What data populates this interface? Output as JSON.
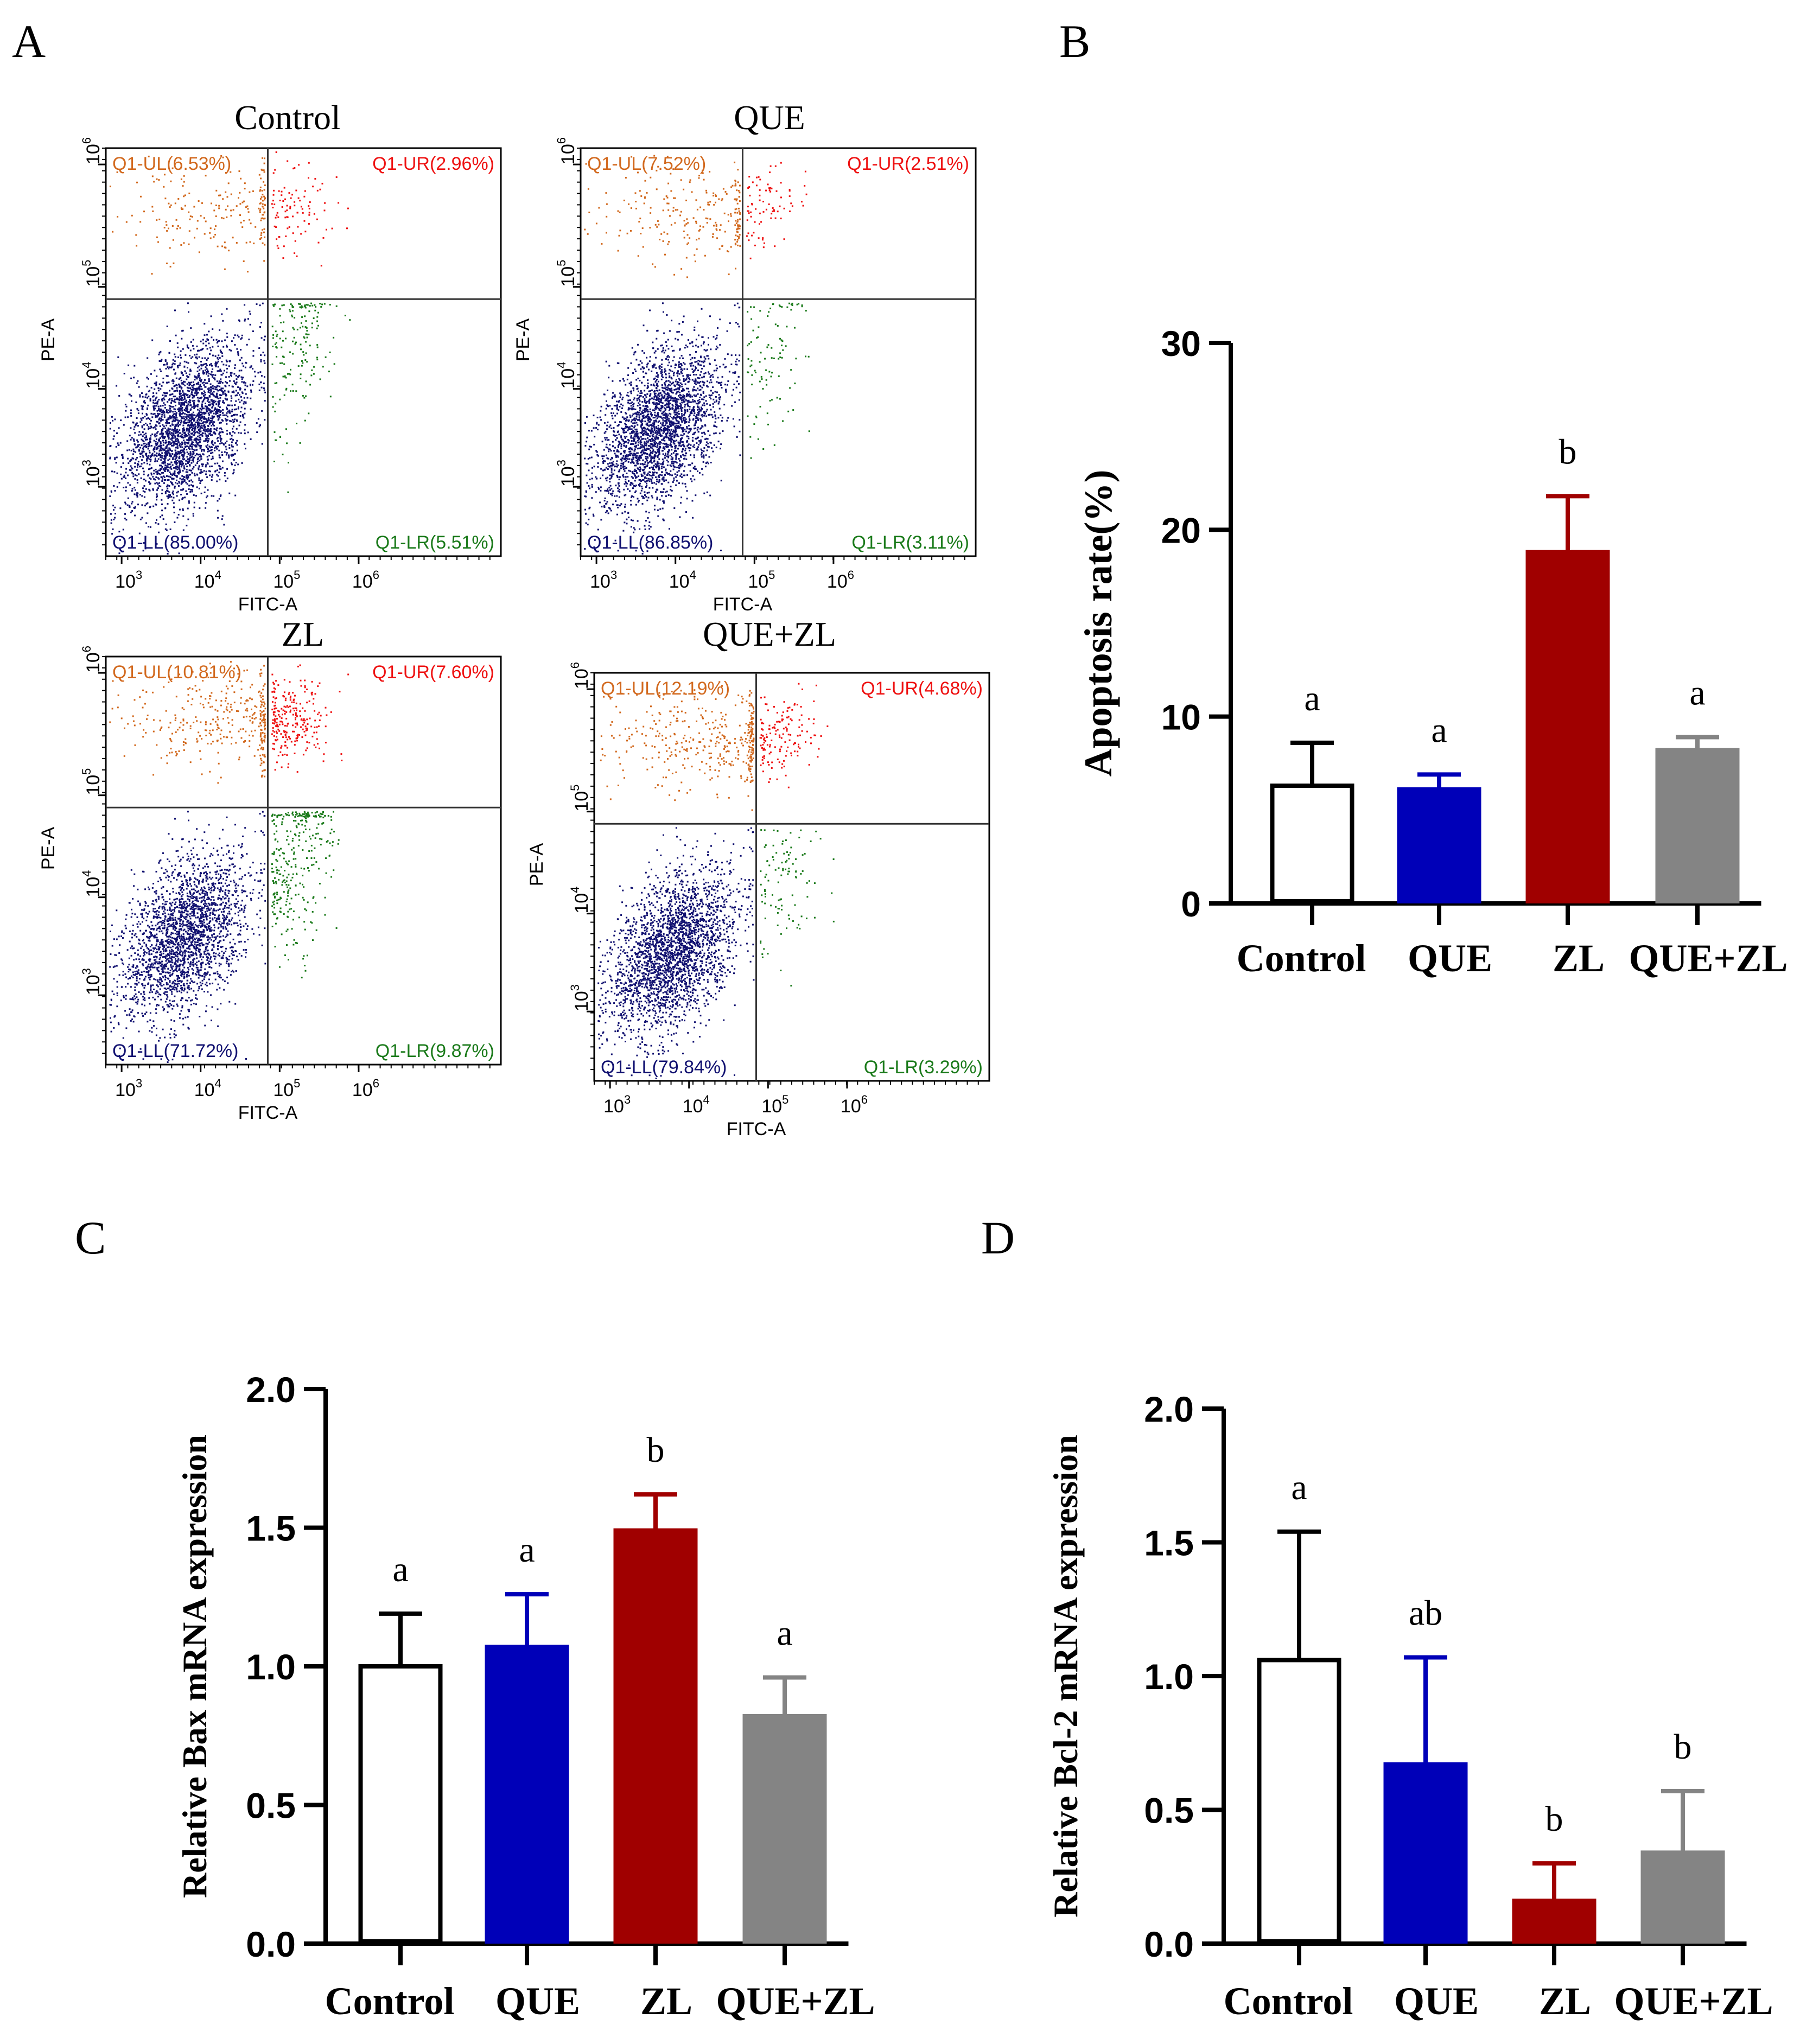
{
  "figure": {
    "panel_labels": [
      "A",
      "B",
      "C",
      "D"
    ]
  },
  "colors": {
    "control": "#ffffff",
    "que": "#0000b8",
    "zl": "#a00000",
    "que_zl": "#848484",
    "ul": "#d2691e",
    "ur": "#ee1111",
    "ll": "#101070",
    "lr": "#1a7a1a",
    "axis": "#000000",
    "gate": "#333333"
  },
  "flow": {
    "x_label": "FITC-A",
    "y_label": "PE-A",
    "x_ticks": [
      "3",
      "4",
      "5",
      "6"
    ],
    "y_ticks": [
      "3",
      "4",
      "5",
      "6"
    ],
    "tick_base": "10",
    "plots": [
      {
        "title": "Control",
        "ul": "Q1-UL(6.53%)",
        "ur": "Q1-UR(2.96%)",
        "ll": "Q1-LL(85.00%)",
        "lr": "Q1-LR(5.51%)",
        "pct": {
          "ul": 6.53,
          "ur": 2.96,
          "ll": 85.0,
          "lr": 5.51
        }
      },
      {
        "title": "QUE",
        "ul": "Q1-UL(7.52%)",
        "ur": "Q1-UR(2.51%)",
        "ll": "Q1-LL(86.85%)",
        "lr": "Q1-LR(3.11%)",
        "pct": {
          "ul": 7.52,
          "ur": 2.51,
          "ll": 86.85,
          "lr": 3.11
        }
      },
      {
        "title": "ZL",
        "ul": "Q1-UL(10.81%)",
        "ur": "Q1-UR(7.60%)",
        "ll": "Q1-LL(71.72%)",
        "lr": "Q1-LR(9.87%)",
        "pct": {
          "ul": 10.81,
          "ur": 7.6,
          "ll": 71.72,
          "lr": 9.87
        }
      },
      {
        "title": "QUE+ZL",
        "ul": "Q1-UL(12.19%)",
        "ur": "Q1-UR(4.68%)",
        "ll": "Q1-LL(79.84%)",
        "lr": "Q1-LR(3.29%)",
        "pct": {
          "ul": 12.19,
          "ur": 4.68,
          "ll": 79.84,
          "lr": 3.29
        }
      }
    ]
  },
  "chart_data": [
    {
      "panel": "B",
      "type": "bar",
      "categories": [
        "Control",
        "QUE",
        "ZL",
        "QUE+ZL"
      ],
      "values": [
        6.3,
        6.1,
        18.8,
        8.2
      ],
      "errors": [
        2.3,
        0.8,
        3.0,
        0.7
      ],
      "letters": [
        "a",
        "a",
        "b",
        "a"
      ],
      "ylabel": "Apoptosis rate(%)",
      "ylim": [
        0,
        30
      ],
      "yticks": [
        0,
        10,
        20,
        30
      ],
      "ytick_labels": [
        "0",
        "10",
        "20",
        "30"
      ]
    },
    {
      "panel": "C",
      "type": "bar",
      "categories": [
        "Control",
        "QUE",
        "ZL",
        "QUE+ZL"
      ],
      "values": [
        1.0,
        1.07,
        1.49,
        0.82
      ],
      "errors": [
        0.19,
        0.19,
        0.13,
        0.14
      ],
      "letters": [
        "a",
        "a",
        "b",
        "a"
      ],
      "ylabel": "Relative Bax mRNA expression",
      "ylim": [
        0,
        2.0
      ],
      "yticks": [
        0,
        0.5,
        1.0,
        1.5,
        2.0
      ],
      "ytick_labels": [
        "0.0",
        "0.5",
        "1.0",
        "1.5",
        "2.0"
      ]
    },
    {
      "panel": "D",
      "type": "bar",
      "categories": [
        "Control",
        "QUE",
        "ZL",
        "QUE+ZL"
      ],
      "values": [
        1.06,
        0.67,
        0.16,
        0.34
      ],
      "errors": [
        0.48,
        0.4,
        0.14,
        0.23
      ],
      "letters": [
        "a",
        "ab",
        "b",
        "b"
      ],
      "ylabel": "Relative Bcl-2 mRNA expression",
      "ylim": [
        0,
        2.0
      ],
      "yticks": [
        0,
        0.5,
        1.0,
        1.5,
        2.0
      ],
      "ytick_labels": [
        "0.0",
        "0.5",
        "1.0",
        "1.5",
        "2.0"
      ]
    }
  ]
}
